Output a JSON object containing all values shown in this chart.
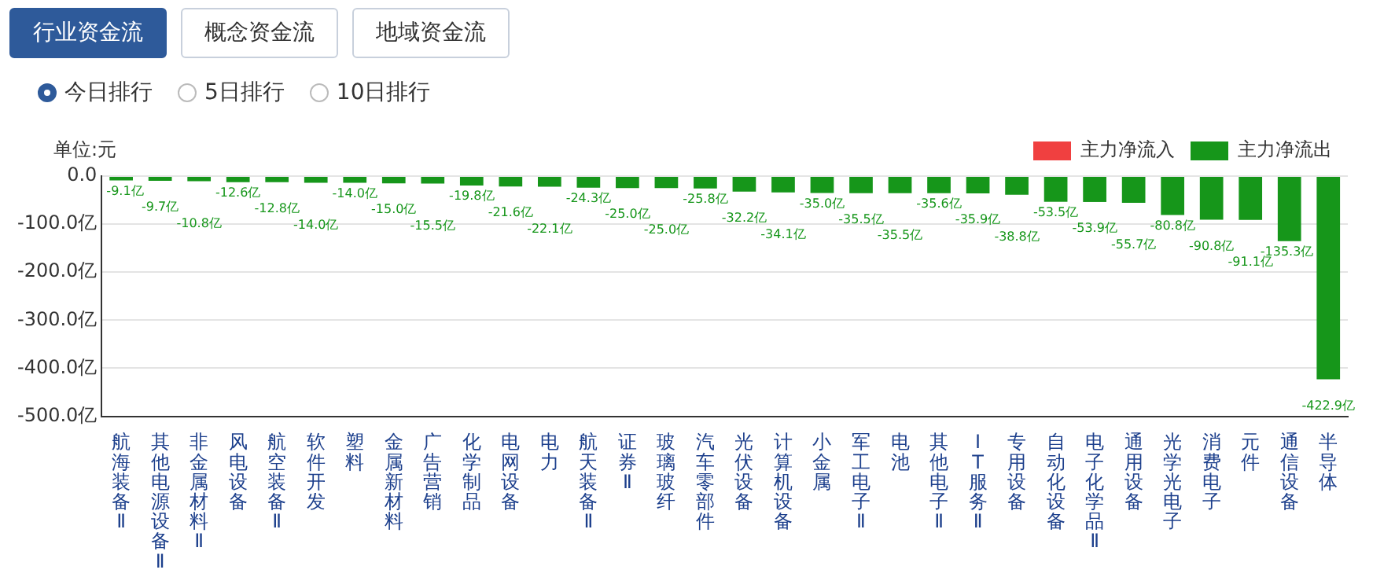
{
  "chart_data": {
    "type": "bar",
    "ylabel": "单位:元",
    "annotations": [
      "行业资金流",
      "概念资金流",
      "地域资金流",
      "今日排行",
      "5日排行",
      "10日排行"
    ],
    "categories": [
      "航海装备Ⅱ",
      "其他电源设备Ⅱ",
      "非金属材料Ⅱ",
      "风电设备",
      "航空装备Ⅱ",
      "软件开发",
      "塑料",
      "金属新材料",
      "广告营销",
      "化学制品",
      "电网设备",
      "电力",
      "航天装备Ⅱ",
      "证券Ⅱ",
      "玻璃玻纤",
      "汽车零部件",
      "光伏设备",
      "计算机设备",
      "小金属",
      "军工电子Ⅱ",
      "电池",
      "其他电子Ⅱ",
      "IT服务Ⅱ",
      "专用设备",
      "自动化设备",
      "电子化学品Ⅱ",
      "通用设备",
      "光学光电子",
      "消费电子",
      "元件",
      "通信设备",
      "半导体"
    ],
    "series": [
      {
        "name": "主力净流入",
        "color": "#f04040",
        "values": [
          null,
          null,
          null,
          null,
          null,
          null,
          null,
          null,
          null,
          null,
          null,
          null,
          null,
          null,
          null,
          null,
          null,
          null,
          null,
          null,
          null,
          null,
          null,
          null,
          null,
          null,
          null,
          null,
          null,
          null,
          null,
          null
        ]
      },
      {
        "name": "主力净流出",
        "color": "#16961a",
        "values": [
          -9.1,
          -9.7,
          -10.8,
          -12.6,
          -12.8,
          -14.0,
          -14.0,
          -15.0,
          -15.5,
          -19.8,
          -21.6,
          -22.1,
          -24.3,
          -25.0,
          -25.0,
          -25.8,
          -32.2,
          -34.1,
          -35.0,
          -35.5,
          -35.5,
          -35.6,
          -35.9,
          -38.8,
          -53.5,
          -53.9,
          -55.7,
          -80.8,
          -90.8,
          -91.1,
          -135.3,
          -422.9
        ],
        "value_labels": [
          "-9.1亿",
          "-9.7亿",
          "-10.8亿",
          "-12.6亿",
          "-12.8亿",
          "-14.0亿",
          "-14.0亿",
          "-15.0亿",
          "-15.5亿",
          "-19.8亿",
          "-21.6亿",
          "-22.1亿",
          "-24.3亿",
          "-25.0亿",
          "-25.0亿",
          "-25.8亿",
          "-32.2亿",
          "-34.1亿",
          "-35.0亿",
          "-35.5亿",
          "-35.5亿",
          "-35.6亿",
          "-35.9亿",
          "-38.8亿",
          "-53.5亿",
          "-53.9亿",
          "-55.7亿",
          "-80.8亿",
          "-90.8亿",
          "-91.1亿",
          "-135.3亿",
          "-422.9亿"
        ]
      }
    ],
    "ylim": [
      -500,
      0
    ],
    "yticks": [
      {
        "value": 0,
        "label": "0.0"
      },
      {
        "value": -100,
        "label": "-100.0亿"
      },
      {
        "value": -200,
        "label": "-200.0亿"
      },
      {
        "value": -300,
        "label": "-300.0亿"
      },
      {
        "value": -400,
        "label": "-400.0亿"
      },
      {
        "value": -500,
        "label": "-500.0亿"
      }
    ],
    "grid": "y",
    "legend": "top right"
  }
}
